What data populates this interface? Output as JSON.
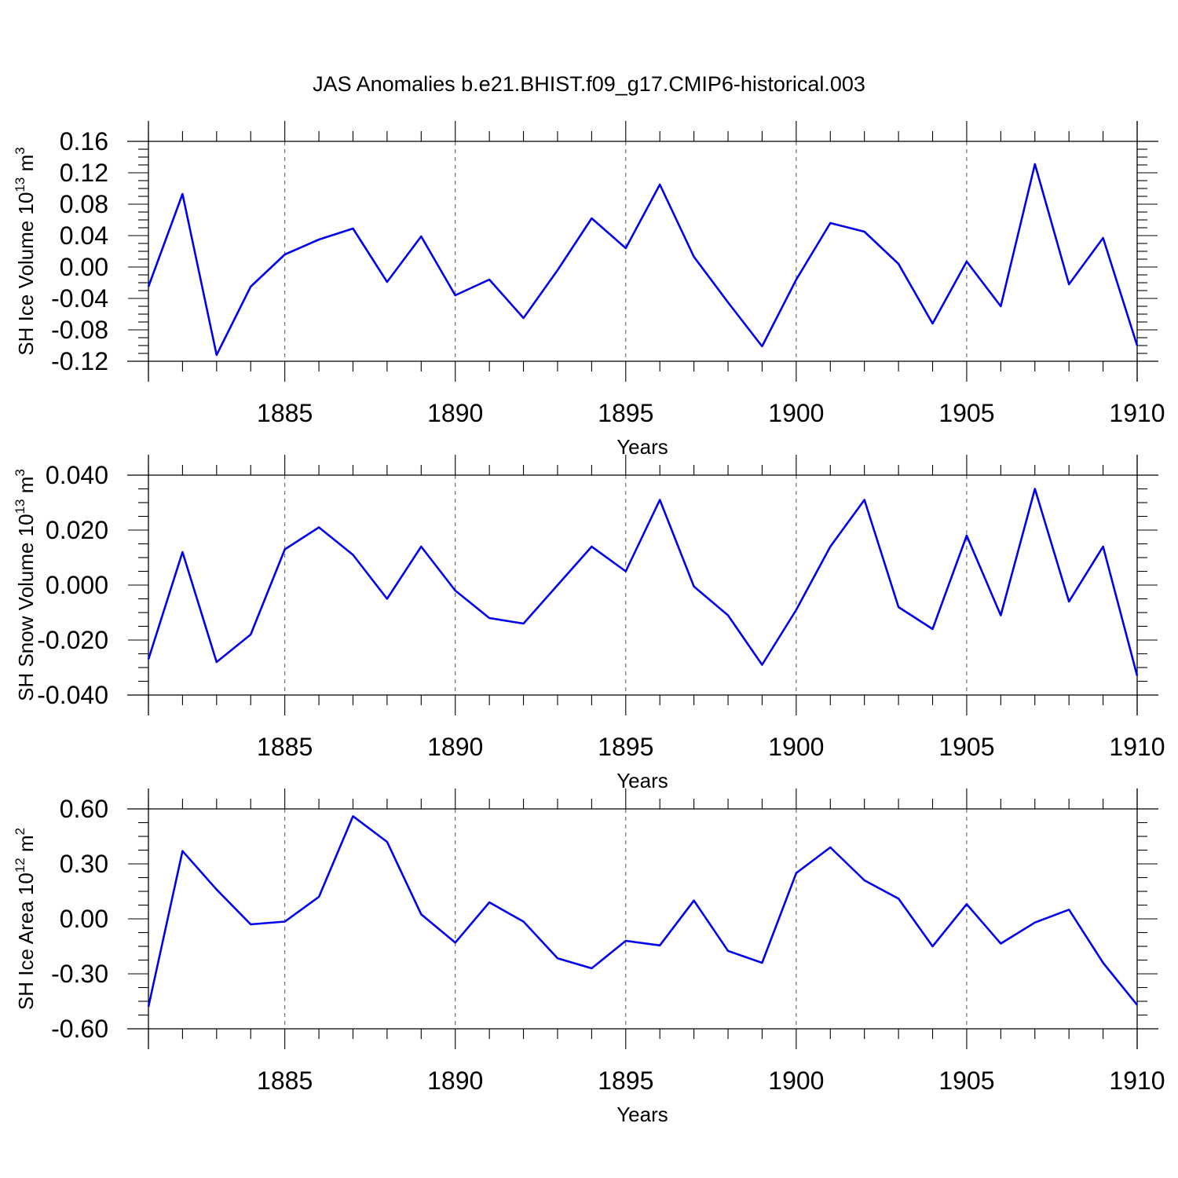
{
  "title": "JAS Anomalies b.e21.BHIST.f09_g17.CMIP6-historical.003",
  "colors": {
    "series": "#0000ee",
    "grid": "#555555",
    "axis": "#000000"
  },
  "chart_data": [
    {
      "type": "line",
      "ylabel_main": "SH Ice Volume 10",
      "ylabel_sup1": "13",
      "ylabel_mid": " m",
      "ylabel_sup2": "3",
      "xlabel": "Years",
      "xlim": [
        1881,
        1910
      ],
      "ylim": [
        -0.12,
        0.16
      ],
      "x_ticks": [
        1885,
        1890,
        1895,
        1900,
        1905,
        1910
      ],
      "y_ticks": [
        -0.12,
        -0.08,
        -0.04,
        0.0,
        0.04,
        0.08,
        0.12,
        0.16
      ],
      "y_tick_labels": [
        "-0.12",
        "-0.08",
        "-0.04",
        "0.00",
        "0.04",
        "0.08",
        "0.12",
        "0.16"
      ],
      "grid": "vertical-dashed",
      "x": [
        1881,
        1882,
        1883,
        1884,
        1885,
        1886,
        1887,
        1888,
        1889,
        1890,
        1891,
        1892,
        1893,
        1894,
        1895,
        1896,
        1897,
        1898,
        1899,
        1900,
        1901,
        1902,
        1903,
        1904,
        1905,
        1906,
        1907,
        1908,
        1909,
        1910
      ],
      "values": [
        -0.025,
        0.093,
        -0.112,
        -0.025,
        0.016,
        0.035,
        0.049,
        -0.019,
        0.039,
        -0.036,
        -0.016,
        -0.065,
        -0.004,
        0.062,
        0.024,
        0.105,
        0.013,
        -0.045,
        -0.101,
        -0.016,
        0.056,
        0.045,
        0.004,
        -0.072,
        0.007,
        -0.05,
        0.131,
        -0.022,
        0.037,
        -0.1
      ]
    },
    {
      "type": "line",
      "ylabel_main": "SH Snow Volume 10",
      "ylabel_sup1": "13",
      "ylabel_mid": " m",
      "ylabel_sup2": "3",
      "xlabel": "Years",
      "xlim": [
        1881,
        1910
      ],
      "ylim": [
        -0.04,
        0.04
      ],
      "x_ticks": [
        1885,
        1890,
        1895,
        1900,
        1905,
        1910
      ],
      "y_ticks": [
        -0.04,
        -0.02,
        0.0,
        0.02,
        0.04
      ],
      "y_tick_labels": [
        "-0.040",
        "-0.020",
        "0.000",
        "0.020",
        "0.040"
      ],
      "grid": "vertical-dashed",
      "x": [
        1881,
        1882,
        1883,
        1884,
        1885,
        1886,
        1887,
        1888,
        1889,
        1890,
        1891,
        1892,
        1893,
        1894,
        1895,
        1896,
        1897,
        1898,
        1899,
        1900,
        1901,
        1902,
        1903,
        1904,
        1905,
        1906,
        1907,
        1908,
        1909,
        1910
      ],
      "values": [
        -0.027,
        0.012,
        -0.028,
        -0.018,
        0.013,
        0.021,
        0.011,
        -0.005,
        0.014,
        -0.002,
        -0.012,
        -0.014,
        0.0,
        0.014,
        0.005,
        0.031,
        -0.0005,
        -0.011,
        -0.029,
        -0.009,
        0.014,
        0.031,
        -0.008,
        -0.016,
        0.018,
        -0.011,
        0.035,
        -0.006,
        0.014,
        -0.033
      ]
    },
    {
      "type": "line",
      "ylabel_main": "SH Ice Area 10",
      "ylabel_sup1": "12",
      "ylabel_mid": " m",
      "ylabel_sup2": "2",
      "xlabel": "Years",
      "xlim": [
        1881,
        1910
      ],
      "ylim": [
        -0.6,
        0.6
      ],
      "x_ticks": [
        1885,
        1890,
        1895,
        1900,
        1905,
        1910
      ],
      "y_ticks": [
        -0.6,
        -0.3,
        0.0,
        0.3,
        0.6
      ],
      "y_tick_labels": [
        "-0.60",
        "-0.30",
        "0.00",
        "0.30",
        "0.60"
      ],
      "grid": "vertical-dashed",
      "x": [
        1881,
        1882,
        1883,
        1884,
        1885,
        1886,
        1887,
        1888,
        1889,
        1890,
        1891,
        1892,
        1893,
        1894,
        1895,
        1896,
        1897,
        1898,
        1899,
        1900,
        1901,
        1902,
        1903,
        1904,
        1905,
        1906,
        1907,
        1908,
        1909,
        1910
      ],
      "values": [
        -0.48,
        0.37,
        0.16,
        -0.03,
        -0.015,
        0.12,
        0.56,
        0.42,
        0.025,
        -0.13,
        0.09,
        -0.015,
        -0.215,
        -0.27,
        -0.12,
        -0.145,
        0.1,
        -0.175,
        -0.24,
        0.25,
        0.39,
        0.21,
        0.11,
        -0.15,
        0.08,
        -0.135,
        -0.02,
        0.05,
        -0.24,
        -0.47
      ]
    }
  ]
}
